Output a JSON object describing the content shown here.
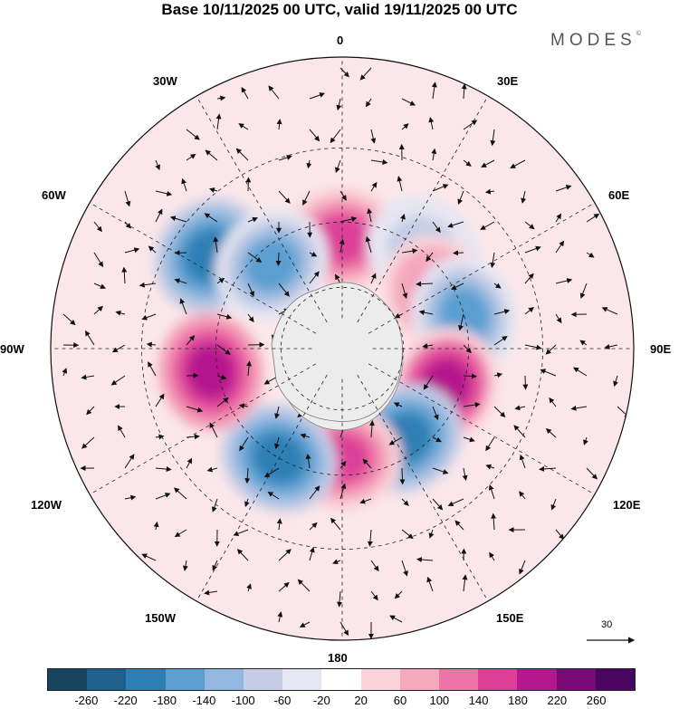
{
  "title": "Base 10/11/2025 00 UTC, valid 19/11/2025 00 UTC",
  "brand": "MODES",
  "brand_mark": "©",
  "map": {
    "projection": "south-polar-stereographic",
    "longitude_labels": {
      "top": "0",
      "bottom": "180",
      "left": "90W",
      "right": "90E",
      "top_left_30": "30W",
      "top_left_60": "60W",
      "bottom_left_120": "120W",
      "bottom_left_150": "150W",
      "top_right_30": "30E",
      "top_right_60": "60E",
      "bottom_right_120": "120E",
      "bottom_right_150": "150E"
    },
    "anomaly_centers": [
      {
        "lon": 0,
        "lat": -55,
        "value": 180,
        "sign": "positive"
      },
      {
        "lon": 40,
        "lat": -50,
        "value": -100,
        "sign": "negative"
      },
      {
        "lon": 60,
        "lat": -55,
        "value": 160,
        "sign": "positive"
      },
      {
        "lon": 75,
        "lat": -50,
        "value": -220,
        "sign": "negative"
      },
      {
        "lon": 110,
        "lat": -55,
        "value": 240,
        "sign": "positive"
      },
      {
        "lon": 145,
        "lat": -55,
        "value": -260,
        "sign": "negative"
      },
      {
        "lon": 180,
        "lat": -55,
        "value": 220,
        "sign": "positive"
      },
      {
        "lon": -150,
        "lat": -50,
        "value": -260,
        "sign": "negative"
      },
      {
        "lon": -100,
        "lat": -48,
        "value": 260,
        "sign": "positive"
      },
      {
        "lon": -55,
        "lat": -40,
        "value": -260,
        "sign": "negative"
      },
      {
        "lon": -40,
        "lat": -55,
        "value": -220,
        "sign": "negative"
      }
    ],
    "wind_reference": {
      "value": "30"
    }
  },
  "colorbar": {
    "colors": [
      "#17445f",
      "#1e5f8c",
      "#2f7fb5",
      "#5a9fd0",
      "#93b7de",
      "#c5cde6",
      "#e6e6f2",
      "#ffffff",
      "#fad4da",
      "#f5a9bd",
      "#ee74a8",
      "#dd3f98",
      "#b5178d",
      "#7a0a76",
      "#4a0560"
    ],
    "ticks": [
      "-260",
      "-220",
      "-180",
      "-140",
      "-100",
      "-60",
      "-20",
      "20",
      "60",
      "100",
      "140",
      "180",
      "220",
      "260"
    ]
  }
}
